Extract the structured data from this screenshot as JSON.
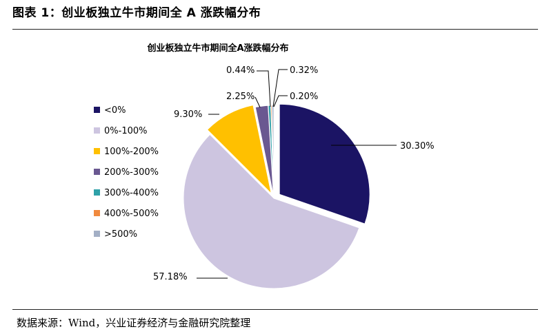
{
  "figure": {
    "title": "图表 1：创业板独立牛市期间全 A 涨跌幅分布",
    "source": "数据来源：Wind，兴业证券经济与金融研究院整理"
  },
  "chart_data": {
    "type": "pie",
    "title": "创业板独立牛市期间全A涨跌幅分布",
    "legend_position": "left",
    "slices": [
      {
        "label": "<0%",
        "value": 30.3,
        "display": "30.30%",
        "color": "#1b1464"
      },
      {
        "label": "0%-100%",
        "value": 57.18,
        "display": "57.18%",
        "color": "#cdc5e0"
      },
      {
        "label": "100%-200%",
        "value": 9.3,
        "display": "9.30%",
        "color": "#ffc000"
      },
      {
        "label": "200%-300%",
        "value": 2.25,
        "display": "2.25%",
        "color": "#6a5891"
      },
      {
        "label": "300%-400%",
        "value": 0.44,
        "display": "0.44%",
        "color": "#2fa1a8"
      },
      {
        "label": "400%-500%",
        "value": 0.2,
        "display": "0.20%",
        "color": "#f08a3e"
      },
      {
        "label": ">500%",
        "value": 0.32,
        "display": "0.32%",
        "color": "#a3afc5"
      }
    ]
  }
}
